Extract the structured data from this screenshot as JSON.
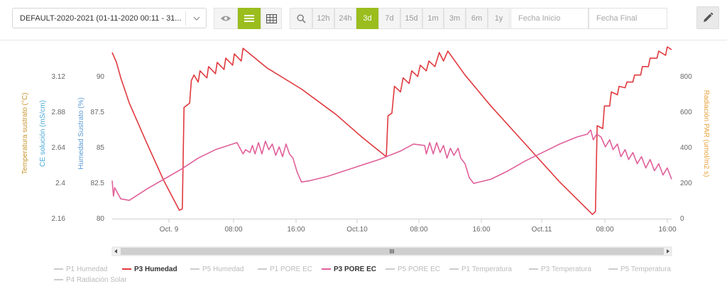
{
  "toolbar": {
    "dataset_select": "DEFAULT-2020-2021 (01-11-2020 00:11 - 31...",
    "ranges": [
      "12h",
      "24h",
      "3d",
      "7d",
      "15d",
      "1m",
      "3m",
      "6m",
      "1y"
    ],
    "active_range": "3d",
    "start_placeholder": "Fecha Inicio",
    "end_placeholder": "Fecha Final"
  },
  "chart_data": {
    "type": "line",
    "x_tick_labels": [
      "Oct. 9",
      "08:00",
      "16:00",
      "Oct.10",
      "08:00",
      "16:00",
      "Oct.11",
      "08:00",
      "16:00"
    ],
    "y_axes": [
      {
        "label": "Temperatura sustrato (°C)",
        "color": "#c8962e",
        "ticks": [
          "3.12",
          "2.88",
          "2.64",
          "2.4",
          "2.16"
        ]
      },
      {
        "label": "CE solución (mS/cm)",
        "color": "#4aa8d8",
        "ticks": []
      },
      {
        "label": "Humedad Sustrato (%)",
        "color": "#5b9bd5",
        "ticks": [
          "90",
          "87.5",
          "85",
          "82.5",
          "80"
        ],
        "range": [
          80,
          92
        ]
      },
      {
        "label": "Radiación PAR (umol/m2 s)",
        "color": "#e8a23c",
        "ticks": [
          "800",
          "600",
          "400",
          "200",
          "0"
        ]
      }
    ],
    "series": [
      {
        "name": "P3 Humedad",
        "color": "#e0393e",
        "axis": "Humedad Sustrato (%)",
        "points": [
          [
            0,
            91.8
          ],
          [
            0.5,
            91.1
          ],
          [
            1,
            90.0
          ],
          [
            2,
            88.2
          ],
          [
            4,
            85.4
          ],
          [
            6,
            82.7
          ],
          [
            7.8,
            80.6
          ],
          [
            8.15,
            80.7
          ],
          [
            8.35,
            87.9
          ],
          [
            9,
            88.2
          ],
          [
            9.2,
            89.8
          ],
          [
            9.5,
            90.2
          ],
          [
            10,
            89.7
          ],
          [
            10.2,
            90.5
          ],
          [
            11,
            90.0
          ],
          [
            11.2,
            90.8
          ],
          [
            12,
            90.3
          ],
          [
            12.2,
            91.1
          ],
          [
            13,
            90.6
          ],
          [
            13.2,
            91.4
          ],
          [
            14,
            90.9
          ],
          [
            14.2,
            91.7
          ],
          [
            15,
            91.2
          ],
          [
            15.2,
            92.1
          ],
          [
            18,
            90.7
          ],
          [
            22,
            89.2
          ],
          [
            26,
            87.4
          ],
          [
            29,
            85.8
          ],
          [
            31.85,
            84.4
          ],
          [
            32.05,
            87.3
          ],
          [
            32.5,
            87.5
          ],
          [
            32.8,
            89.4
          ],
          [
            33.5,
            89.0
          ],
          [
            33.8,
            90.0
          ],
          [
            34.5,
            89.6
          ],
          [
            34.8,
            90.5
          ],
          [
            35.5,
            90.1
          ],
          [
            35.8,
            90.9
          ],
          [
            36.5,
            90.5
          ],
          [
            36.8,
            91.2
          ],
          [
            37.5,
            90.8
          ],
          [
            38,
            91.8
          ],
          [
            38.5,
            91.2
          ],
          [
            39,
            91.9
          ],
          [
            41,
            90.2
          ],
          [
            44,
            88.0
          ],
          [
            48,
            85.3
          ],
          [
            52,
            82.6
          ],
          [
            55.8,
            80.3
          ],
          [
            56.15,
            80.5
          ],
          [
            56.35,
            86.6
          ],
          [
            57,
            86.4
          ],
          [
            57.2,
            88.0
          ],
          [
            57.8,
            88.0
          ],
          [
            58,
            89.0
          ],
          [
            58.7,
            88.8
          ],
          [
            58.9,
            89.4
          ],
          [
            59.6,
            89.3
          ],
          [
            59.8,
            89.7
          ],
          [
            60.5,
            89.7
          ],
          [
            60.7,
            90.2
          ],
          [
            61.4,
            90.2
          ],
          [
            61.6,
            90.8
          ],
          [
            62.3,
            90.8
          ],
          [
            62.5,
            91.4
          ],
          [
            63.3,
            91.4
          ],
          [
            63.5,
            91.9
          ],
          [
            64.3,
            91.6
          ],
          [
            64.5,
            92.2
          ],
          [
            65,
            92.0
          ]
        ]
      },
      {
        "name": "P3 PORE EC",
        "color": "#e0609a",
        "axis": "CE solución (mS/cm)",
        "points": [
          [
            0,
            82.7
          ],
          [
            0.15,
            81.6
          ],
          [
            0.3,
            82.2
          ],
          [
            1,
            81.4
          ],
          [
            2,
            81.3
          ],
          [
            4,
            82.1
          ],
          [
            6,
            82.8
          ],
          [
            8,
            83.5
          ],
          [
            10,
            84.3
          ],
          [
            12,
            84.9
          ],
          [
            14.5,
            85.4
          ],
          [
            15.2,
            84.6
          ],
          [
            15.5,
            84.9
          ],
          [
            16,
            84.7
          ],
          [
            16.3,
            85.2
          ],
          [
            16.6,
            84.6
          ],
          [
            17,
            85.4
          ],
          [
            17.4,
            84.6
          ],
          [
            17.8,
            85.5
          ],
          [
            18.2,
            84.9
          ],
          [
            18.6,
            85.3
          ],
          [
            19,
            84.5
          ],
          [
            19.4,
            85.1
          ],
          [
            19.8,
            84.4
          ],
          [
            20.2,
            85.3
          ],
          [
            20.6,
            84.6
          ],
          [
            21,
            84.3
          ],
          [
            21.5,
            83.3
          ],
          [
            22,
            82.6
          ],
          [
            23,
            82.7
          ],
          [
            25,
            83.0
          ],
          [
            28,
            83.6
          ],
          [
            31,
            84.2
          ],
          [
            33.5,
            84.8
          ],
          [
            35,
            85.3
          ],
          [
            36.3,
            85.2
          ],
          [
            36.5,
            84.6
          ],
          [
            36.9,
            85.4
          ],
          [
            37.3,
            84.6
          ],
          [
            37.7,
            85.4
          ],
          [
            38.1,
            84.7
          ],
          [
            38.5,
            85.2
          ],
          [
            38.9,
            84.3
          ],
          [
            39.3,
            85.0
          ],
          [
            39.7,
            84.5
          ],
          [
            40.2,
            85.0
          ],
          [
            40.5,
            84.3
          ],
          [
            41,
            83.9
          ],
          [
            41.5,
            82.9
          ],
          [
            42,
            82.5
          ],
          [
            44,
            82.8
          ],
          [
            46,
            83.4
          ],
          [
            48,
            84.1
          ],
          [
            50,
            84.7
          ],
          [
            52,
            85.3
          ],
          [
            54,
            85.8
          ],
          [
            55.2,
            86.0
          ],
          [
            55.6,
            86.3
          ],
          [
            55.9,
            85.6
          ],
          [
            56.3,
            86.0
          ],
          [
            56.8,
            85.8
          ],
          [
            57.3,
            85.1
          ],
          [
            57.8,
            85.6
          ],
          [
            58.2,
            84.9
          ],
          [
            58.7,
            85.3
          ],
          [
            59.1,
            84.4
          ],
          [
            59.6,
            84.9
          ],
          [
            60.0,
            84.2
          ],
          [
            60.5,
            84.7
          ],
          [
            61.0,
            83.9
          ],
          [
            61.5,
            84.4
          ],
          [
            62.0,
            83.6
          ],
          [
            62.5,
            84.2
          ],
          [
            63.0,
            83.4
          ],
          [
            63.5,
            83.9
          ],
          [
            64,
            83.1
          ],
          [
            64.5,
            83.6
          ],
          [
            65,
            82.8
          ]
        ]
      }
    ],
    "legend": [
      {
        "name": "P1 Humedad",
        "active": false,
        "color": "#cccccc"
      },
      {
        "name": "P3 Humedad",
        "active": true,
        "color": "#e0393e"
      },
      {
        "name": "P5 Humedad",
        "active": false,
        "color": "#cccccc"
      },
      {
        "name": "P1 PORE EC",
        "active": false,
        "color": "#cccccc"
      },
      {
        "name": "P3 PORE EC",
        "active": true,
        "color": "#e0609a"
      },
      {
        "name": "P5 PORE EC",
        "active": false,
        "color": "#cccccc"
      },
      {
        "name": "P1 Temperatura",
        "active": false,
        "color": "#cccccc"
      },
      {
        "name": "P3 Temperatura",
        "active": false,
        "color": "#cccccc"
      },
      {
        "name": "P5 Temperatura",
        "active": false,
        "color": "#cccccc"
      },
      {
        "name": "P4 Radiación Solar",
        "active": false,
        "color": "#cccccc"
      }
    ],
    "scrollbar_grip": "III"
  }
}
